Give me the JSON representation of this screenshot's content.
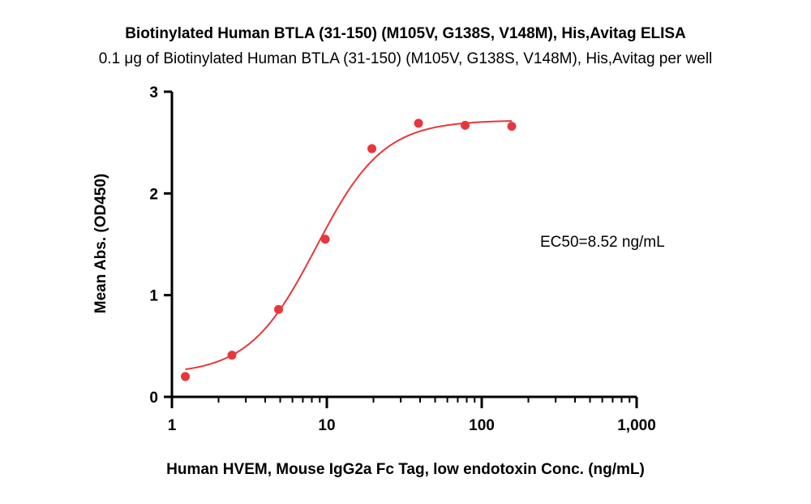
{
  "chart_data": {
    "type": "scatter",
    "title": "Biotinylated Human BTLA (31-150) (M105V, G138S, V148M), His,Avitag ELISA",
    "subtitle": "0.1 μg of Biotinylated Human BTLA (31-150) (M105V, G138S, V148M), His,Avitag per well",
    "xlabel": "Human HVEM, Mouse IgG2a Fc Tag, low endotoxin Conc. (ng/mL)",
    "ylabel": "Mean Abs. (OD450)",
    "x_scale": "log",
    "xlim": [
      1,
      1000
    ],
    "ylim": [
      0,
      3
    ],
    "x_ticks": [
      1,
      10,
      100,
      1000
    ],
    "x_tick_labels": [
      "1",
      "10",
      "100",
      "1,000"
    ],
    "y_ticks": [
      0,
      1,
      2,
      3
    ],
    "y_tick_labels": [
      "0",
      "1",
      "2",
      "3"
    ],
    "grid": false,
    "series": [
      {
        "color": "#e8363d",
        "x": [
          1.22,
          2.44,
          4.88,
          9.77,
          19.53,
          39.06,
          78.13,
          156.25
        ],
        "y": [
          0.2,
          0.41,
          0.86,
          1.55,
          2.44,
          2.69,
          2.67,
          2.66
        ]
      }
    ],
    "fit": {
      "color": "#e8363d",
      "bottom": 0.22,
      "top": 2.72,
      "ec50": 8.52,
      "hill": 2.0,
      "x_range": [
        1.22,
        156.25
      ]
    },
    "annotation": "EC50=8.52 ng/mL"
  }
}
